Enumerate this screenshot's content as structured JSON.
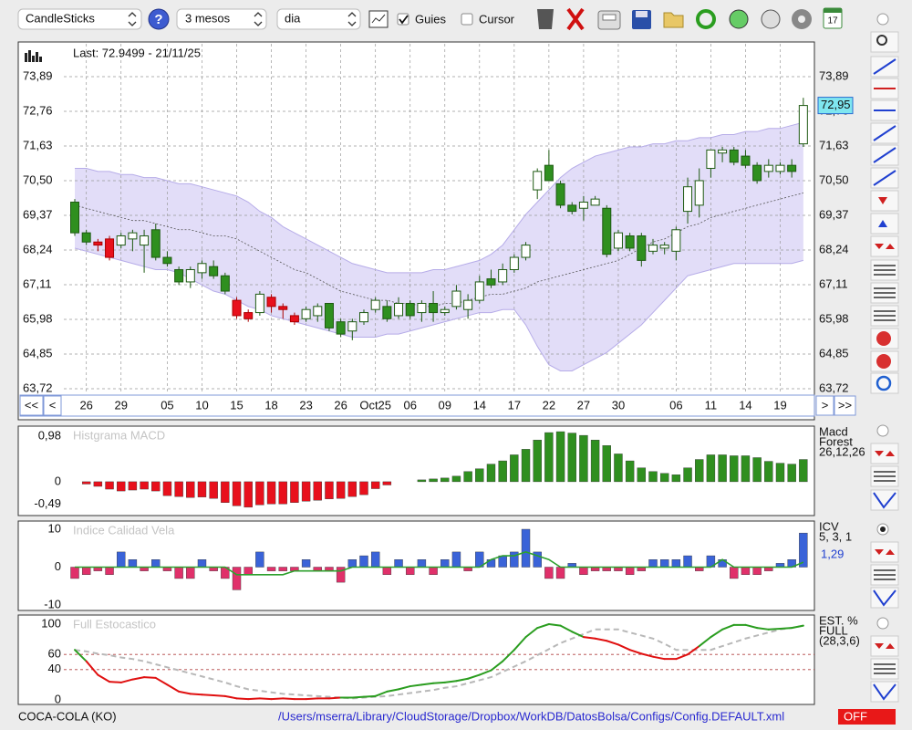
{
  "toolbar": {
    "chart_type": "CandleSticks",
    "help": "?",
    "period": "3 mesos",
    "interval": "dia",
    "guides": "Guies",
    "guides_checked": true,
    "cursor": "Cursor",
    "cursor_checked": false,
    "calendar_day": "17"
  },
  "chart_data": [
    {
      "type": "candlestick",
      "title": "Last: 72.9499 - 21/11/25",
      "last_value": 72.95,
      "last_value_label": "72,95",
      "nav_buttons": [
        "<<",
        "<",
        ">",
        ">>"
      ],
      "categories": [
        null,
        "26",
        null,
        null,
        "29",
        null,
        null,
        null,
        "05",
        null,
        null,
        "10",
        null,
        null,
        "15",
        null,
        null,
        "18",
        null,
        null,
        "23",
        null,
        null,
        "26",
        null,
        null,
        "Oct25",
        null,
        null,
        "06",
        null,
        null,
        "09",
        null,
        null,
        "14",
        null,
        null,
        "17",
        null,
        null,
        "22",
        null,
        null,
        "27",
        null,
        null,
        "30",
        null,
        null,
        null,
        null,
        "06",
        null,
        null,
        "11",
        null,
        null,
        "14",
        null,
        null,
        "19",
        null,
        null
      ],
      "open": [
        69.8,
        68.8,
        68.5,
        68.6,
        68.4,
        68.6,
        68.4,
        68.9,
        68.0,
        67.6,
        67.2,
        67.5,
        67.7,
        67.4,
        66.6,
        66.2,
        66.2,
        66.7,
        66.4,
        66.1,
        66.0,
        66.1,
        66.5,
        65.9,
        65.6,
        65.9,
        66.3,
        66.4,
        66.1,
        66.5,
        66.2,
        66.5,
        66.2,
        66.4,
        66.3,
        66.6,
        67.3,
        67.2,
        67.6,
        68.0,
        70.2,
        71.0,
        70.4,
        69.7,
        69.6,
        69.7,
        69.6,
        68.3,
        68.7,
        68.7,
        68.2,
        68.3,
        68.2,
        69.5,
        69.7,
        70.9,
        71.4,
        71.5,
        71.3,
        71.0,
        70.8,
        70.8,
        71.0,
        71.7
      ],
      "high": [
        69.9,
        68.9,
        68.6,
        68.7,
        68.8,
        68.9,
        68.9,
        69.1,
        68.2,
        67.7,
        67.7,
        67.9,
        67.9,
        67.5,
        66.7,
        66.3,
        66.9,
        66.8,
        66.5,
        66.2,
        66.4,
        66.5,
        66.5,
        66.0,
        66.0,
        66.3,
        66.7,
        66.6,
        66.7,
        66.6,
        66.6,
        66.9,
        66.4,
        67.1,
        66.8,
        67.4,
        67.6,
        67.8,
        68.1,
        68.5,
        70.9,
        71.5,
        70.5,
        69.8,
        70.0,
        70.0,
        69.7,
        68.9,
        68.8,
        68.8,
        68.6,
        68.5,
        69.0,
        70.6,
        70.9,
        71.5,
        71.6,
        71.6,
        71.5,
        71.1,
        71.2,
        71.1,
        71.2,
        73.2
      ],
      "low": [
        68.7,
        68.4,
        68.2,
        67.9,
        68.3,
        68.2,
        67.5,
        67.9,
        67.7,
        67.1,
        67.0,
        67.3,
        67.3,
        66.8,
        66.0,
        65.9,
        66.1,
        66.2,
        66.0,
        65.8,
        65.9,
        65.9,
        65.6,
        65.4,
        65.3,
        65.8,
        66.2,
        65.9,
        66.0,
        66.0,
        65.9,
        65.9,
        66.1,
        66.3,
        66.0,
        66.5,
        67.0,
        67.1,
        67.5,
        67.9,
        69.9,
        70.5,
        69.6,
        69.4,
        69.2,
        69.7,
        68.0,
        68.2,
        68.2,
        67.7,
        68.1,
        68.1,
        67.9,
        69.1,
        69.3,
        70.6,
        71.1,
        71.0,
        70.9,
        70.4,
        70.6,
        70.7,
        70.6,
        71.6
      ],
      "close": [
        68.8,
        68.5,
        68.4,
        68.0,
        68.7,
        68.8,
        68.7,
        68.0,
        67.8,
        67.2,
        67.6,
        67.8,
        67.4,
        66.9,
        66.1,
        66.0,
        66.8,
        66.4,
        66.3,
        65.9,
        66.3,
        66.4,
        65.7,
        65.5,
        65.9,
        66.2,
        66.6,
        66.0,
        66.5,
        66.1,
        66.5,
        66.2,
        66.3,
        66.9,
        66.6,
        67.2,
        67.1,
        67.6,
        68.0,
        68.4,
        70.8,
        70.5,
        69.7,
        69.5,
        69.8,
        69.9,
        68.1,
        68.8,
        68.3,
        67.9,
        68.4,
        68.4,
        68.9,
        70.3,
        70.5,
        71.5,
        71.5,
        71.1,
        71.0,
        70.5,
        71.0,
        71.0,
        70.8,
        72.95
      ],
      "colors": [
        "#2f8f1f",
        "#2f8f1f",
        "#e8101c",
        "#e8101c",
        "#ffffff",
        "#ffffff",
        "#ffffff",
        "#2f8f1f",
        "#2f8f1f",
        "#2f8f1f",
        "#ffffff",
        "#ffffff",
        "#2f8f1f",
        "#2f8f1f",
        "#e8101c",
        "#e8101c",
        "#ffffff",
        "#e8101c",
        "#e8101c",
        "#e8101c",
        "#ffffff",
        "#ffffff",
        "#2f8f1f",
        "#2f8f1f",
        "#ffffff",
        "#ffffff",
        "#ffffff",
        "#2f8f1f",
        "#ffffff",
        "#2f8f1f",
        "#ffffff",
        "#2f8f1f",
        "#ffffff",
        "#ffffff",
        "#ffffff",
        "#ffffff",
        "#2f8f1f",
        "#ffffff",
        "#ffffff",
        "#ffffff",
        "#ffffff",
        "#2f8f1f",
        "#2f8f1f",
        "#2f8f1f",
        "#ffffff",
        "#ffffff",
        "#2f8f1f",
        "#ffffff",
        "#2f8f1f",
        "#2f8f1f",
        "#ffffff",
        "#ffffff",
        "#ffffff",
        "#ffffff",
        "#ffffff",
        "#ffffff",
        "#ffffff",
        "#2f8f1f",
        "#2f8f1f",
        "#2f8f1f",
        "#ffffff",
        "#ffffff",
        "#2f8f1f",
        "#ffffff"
      ],
      "bands": {
        "upper": [
          70.9,
          70.9,
          70.8,
          70.8,
          70.7,
          70.7,
          70.6,
          70.6,
          70.5,
          70.4,
          70.4,
          70.3,
          70.2,
          70.1,
          70.0,
          69.8,
          69.5,
          69.3,
          69.0,
          68.8,
          68.6,
          68.4,
          68.2,
          68.0,
          67.8,
          67.7,
          67.6,
          67.5,
          67.5,
          67.5,
          67.5,
          67.6,
          67.6,
          67.7,
          67.8,
          67.9,
          68.1,
          68.4,
          68.9,
          69.4,
          69.8,
          70.2,
          70.6,
          70.9,
          71.1,
          71.3,
          71.4,
          71.5,
          71.6,
          71.6,
          71.7,
          71.7,
          71.8,
          71.8,
          71.9,
          71.9,
          72.0,
          72.0,
          72.1,
          72.1,
          72.2,
          72.2,
          72.3,
          72.4
        ],
        "middle": [
          69.7,
          69.6,
          69.5,
          69.4,
          69.3,
          69.2,
          69.2,
          69.1,
          69.0,
          68.9,
          68.9,
          68.8,
          68.7,
          68.7,
          68.6,
          68.4,
          68.2,
          68.0,
          67.8,
          67.6,
          67.5,
          67.3,
          67.1,
          66.9,
          66.8,
          66.7,
          66.6,
          66.6,
          66.5,
          66.5,
          66.4,
          66.4,
          66.5,
          66.5,
          66.6,
          66.7,
          66.8,
          66.8,
          66.9,
          67.0,
          67.2,
          67.3,
          67.4,
          67.5,
          67.6,
          67.7,
          67.8,
          67.9,
          68.1,
          68.3,
          68.5,
          68.6,
          68.8,
          69.0,
          69.1,
          69.3,
          69.4,
          69.5,
          69.6,
          69.7,
          69.8,
          69.9,
          70.0,
          70.1
        ],
        "lower": [
          68.3,
          68.2,
          68.1,
          68.0,
          67.9,
          67.8,
          67.7,
          67.6,
          67.6,
          67.5,
          67.3,
          67.1,
          66.9,
          66.8,
          66.6,
          66.4,
          66.3,
          66.1,
          66.0,
          65.9,
          65.8,
          65.7,
          65.6,
          65.5,
          65.4,
          65.4,
          65.4,
          65.5,
          65.5,
          65.6,
          65.7,
          65.8,
          65.9,
          66.0,
          66.1,
          66.2,
          66.2,
          66.3,
          66.3,
          65.8,
          65.1,
          64.5,
          64.3,
          64.3,
          64.5,
          64.7,
          64.9,
          65.2,
          65.5,
          65.8,
          66.2,
          66.6,
          67.0,
          67.4,
          67.5,
          67.6,
          67.7,
          67.8,
          67.8,
          67.8,
          67.8,
          67.8,
          67.8,
          67.9
        ],
        "fill": "#ddd7f7",
        "line_color": "#b6ace8",
        "middle_color": "#555555"
      },
      "ylim": [
        63.6,
        74.96
      ],
      "yticks": [
        {
          "value": 63.72,
          "label": "63,72"
        },
        {
          "value": 64.85,
          "label": "64,85"
        },
        {
          "value": 65.98,
          "label": "65,98"
        },
        {
          "value": 67.11,
          "label": "67,11"
        },
        {
          "value": 68.24,
          "label": "68,24"
        },
        {
          "value": 69.37,
          "label": "69,37"
        },
        {
          "value": 70.5,
          "label": "70,50"
        },
        {
          "value": 71.63,
          "label": "71,63"
        },
        {
          "value": 72.76,
          "label": "72,76"
        },
        {
          "value": 73.89,
          "label": "73,89"
        }
      ],
      "grid": true
    },
    {
      "type": "bar",
      "title": "Histgrama MACD",
      "side_labels": [
        "Macd",
        "Forest",
        "26,12,26"
      ],
      "up_color": "#2f8f1f",
      "down_color": "#e8101c",
      "values": [
        null,
        -0.05,
        -0.1,
        -0.16,
        -0.2,
        -0.18,
        -0.16,
        -0.2,
        -0.3,
        -0.32,
        -0.34,
        -0.33,
        -0.36,
        -0.45,
        -0.52,
        -0.55,
        -0.5,
        -0.48,
        -0.48,
        -0.45,
        -0.42,
        -0.4,
        -0.37,
        -0.36,
        -0.32,
        -0.28,
        -0.15,
        -0.07,
        null,
        null,
        0.04,
        0.06,
        0.08,
        0.12,
        0.22,
        0.28,
        0.38,
        0.45,
        0.58,
        0.7,
        0.9,
        1.06,
        1.08,
        1.05,
        1.0,
        0.9,
        0.78,
        0.6,
        0.45,
        0.3,
        0.22,
        0.18,
        0.15,
        0.3,
        0.48,
        0.58,
        0.58,
        0.56,
        0.56,
        0.52,
        0.44,
        0.4,
        0.38,
        0.48
      ],
      "ylim": [
        -0.73,
        1.14
      ],
      "yticks": [
        {
          "value": 0.98,
          "label": "0,98"
        },
        0,
        {
          "value": -0.49,
          "label": "-0,49"
        }
      ]
    },
    {
      "type": "bar",
      "title": "Indice Calidad Vela",
      "side_labels": [
        "ICV",
        "5, 3, 1"
      ],
      "current_label": "1,29",
      "current_color": "#2040d0",
      "up_color": "#3a63d8",
      "down_color": "#e0306a",
      "values": [
        -3,
        -2,
        -1,
        -2,
        4,
        2,
        -1,
        2,
        -1,
        -3,
        -3,
        2,
        -1,
        -3,
        -6,
        -2,
        4,
        -1,
        -1,
        -1,
        2,
        -1,
        -1,
        -4,
        2,
        3,
        4,
        -2,
        2,
        -2,
        2,
        -2,
        2,
        4,
        -1,
        4,
        2,
        3,
        4,
        10,
        4,
        -3,
        -3,
        1,
        -2,
        -1,
        -1,
        -1,
        -2,
        -1,
        2,
        2,
        2,
        3,
        -1,
        3,
        2,
        -3,
        -2,
        -2,
        -1,
        1,
        2,
        9
      ],
      "line": {
        "color": "#2ca02c",
        "values": [
          0,
          0,
          0,
          0,
          0,
          0,
          0,
          0,
          0,
          0,
          0,
          0,
          0,
          0,
          -2,
          -2,
          -2,
          -2,
          -2,
          -1,
          -1,
          -1,
          -1,
          -1,
          0,
          0,
          0,
          0,
          0,
          0,
          0,
          0,
          0,
          0,
          0,
          0,
          2,
          3,
          3,
          4,
          3,
          2,
          0,
          0,
          0,
          0,
          0,
          0,
          0,
          0,
          0,
          0,
          0,
          0,
          0,
          0,
          2,
          0,
          0,
          0,
          0,
          0,
          0,
          1.3
        ]
      },
      "ylim": [
        -10,
        10
      ],
      "yticks": [
        10,
        0,
        -10
      ]
    },
    {
      "type": "line",
      "title": "Full Estocastico",
      "side_labels": [
        "EST. %",
        "FULL",
        "(28,3,6)"
      ],
      "series": [
        {
          "color": "#2a9d1f",
          "below_color": "#e01010",
          "values": [
            66,
            51,
            33,
            24,
            23,
            27,
            30,
            29,
            20,
            11,
            8,
            7,
            6,
            5,
            2,
            1,
            2,
            1,
            2,
            1,
            1,
            2,
            2,
            3,
            3,
            4,
            5,
            11,
            14,
            18,
            20,
            22,
            23,
            25,
            28,
            33,
            39,
            51,
            66,
            83,
            95,
            100,
            98,
            90,
            83,
            81,
            78,
            73,
            66,
            61,
            57,
            54,
            54,
            60,
            71,
            83,
            93,
            99,
            99,
            95,
            93,
            94,
            95,
            98
          ]
        },
        {
          "color": "#b8b8b8",
          "dashed": true,
          "values": [
            66,
            64,
            61,
            59,
            56,
            54,
            51,
            47,
            43,
            39,
            35,
            31,
            27,
            23,
            18,
            14,
            12,
            10,
            8,
            7,
            6,
            5,
            4,
            3,
            2,
            3,
            4,
            5,
            7,
            9,
            11,
            13,
            16,
            18,
            22,
            26,
            30,
            37,
            44,
            51,
            59,
            67,
            75,
            81,
            87,
            93,
            93,
            93,
            89,
            85,
            81,
            74,
            66,
            66,
            66,
            66,
            71,
            76,
            81,
            85,
            89,
            93,
            95,
            98
          ]
        }
      ],
      "grid_color": "#b04040",
      "ylim": [
        0,
        100
      ],
      "yticks": [
        100,
        60,
        40,
        0
      ]
    }
  ],
  "footer": {
    "symbol": "COCA-COLA (KO)",
    "config_path": "/Users/mserra/Library/CloudStorage/Dropbox/WorkDB/DatosBolsa/Configs/Config.DEFAULT.xml",
    "status": "OFF"
  }
}
